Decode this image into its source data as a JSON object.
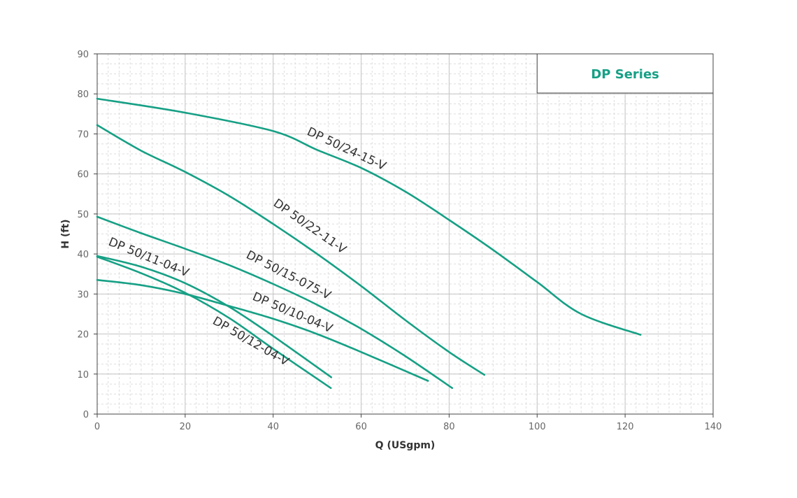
{
  "chart_data": {
    "type": "line",
    "title": "DP Series",
    "xlabel": "Q (USgpm)",
    "ylabel": "H (ft)",
    "xlim": [
      0,
      140
    ],
    "ylim": [
      0,
      90
    ],
    "x_ticks": [
      0,
      20,
      40,
      60,
      80,
      100,
      120,
      140
    ],
    "y_ticks": [
      0,
      10,
      20,
      30,
      40,
      50,
      60,
      70,
      80,
      90
    ],
    "x_minor_step": 2.5,
    "y_minor_step": 2.5,
    "grid": true,
    "line_color": "#16a085",
    "title_color": "#16a085",
    "series": [
      {
        "name": "DP 50/24-15-V",
        "x": [
          0,
          20,
          40,
          50,
          60,
          70,
          80,
          90,
          100,
          110,
          123.5
        ],
        "y": [
          78.8,
          75.3,
          70.7,
          66,
          61.5,
          55.6,
          48.5,
          41,
          33,
          25,
          19.8
        ]
      },
      {
        "name": "DP 50/22-11-V",
        "x": [
          0,
          10,
          20,
          30,
          40,
          50,
          60,
          70,
          80,
          88
        ],
        "y": [
          72.2,
          65.8,
          60.5,
          54.5,
          47.5,
          40,
          32,
          23.5,
          15.5,
          9.8
        ]
      },
      {
        "name": "DP 50/15-075-V",
        "x": [
          0,
          10,
          20,
          30,
          40,
          50,
          60,
          70,
          80.7
        ],
        "y": [
          49.3,
          45.2,
          41.3,
          37.2,
          32.5,
          27.3,
          21.3,
          14.5,
          6.5
        ]
      },
      {
        "name": "DP 50/10-04-V",
        "x": [
          0,
          10,
          20,
          30,
          40,
          50,
          60,
          75.2
        ],
        "y": [
          33.5,
          32.2,
          30,
          27,
          23.8,
          20,
          15.5,
          8.3
        ]
      },
      {
        "name": "DP 50/11-04-V",
        "x": [
          0,
          10,
          20,
          30,
          40,
          53.2
        ],
        "y": [
          39.5,
          36.8,
          32.7,
          26.8,
          19.5,
          9.2
        ]
      },
      {
        "name": "DP 50/12-04-V",
        "x": [
          0,
          10,
          20,
          30,
          40,
          53.1
        ],
        "y": [
          39.3,
          35.2,
          30.3,
          24,
          16.3,
          6.5
        ]
      }
    ]
  }
}
